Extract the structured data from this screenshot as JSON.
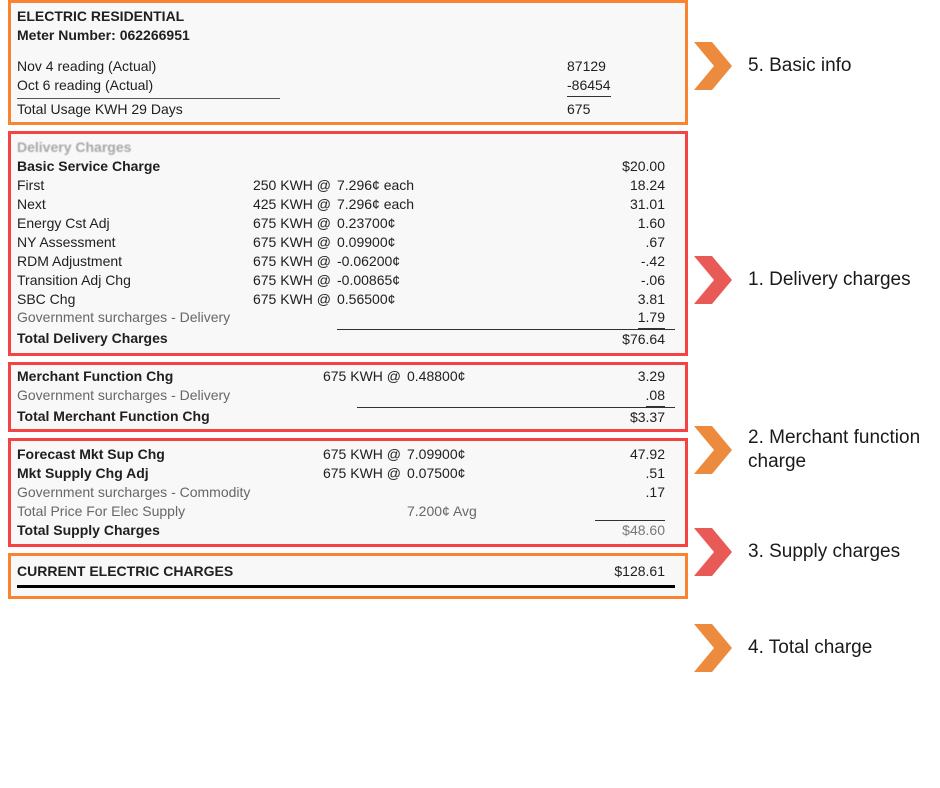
{
  "colors": {
    "box_orange": "#f58233",
    "box_red": "#ee4444",
    "chevron_orange": "#ec8b3e",
    "chevron_red": "#e85a56",
    "bill_bg": "#f3f3f3",
    "text": "#222222"
  },
  "annotations": {
    "basic": "5. Basic info",
    "delivery": "1. Delivery charges",
    "merchant": "2. Merchant function charge",
    "supply": "3. Supply charges",
    "total": "4. Total charge"
  },
  "basic": {
    "title": "ELECTRIC RESIDENTIAL",
    "meter_label": "Meter Number:",
    "meter_number": "062266951",
    "reading1_label": "Nov 4  reading (Actual)",
    "reading1_value": "87129",
    "reading2_label": "Oct 6 reading (Actual)",
    "reading2_value": "-86454",
    "usage_label": "Total Usage KWH 29 Days",
    "usage_value": "675"
  },
  "delivery": {
    "header": "Delivery Charges",
    "basic_service_label": "Basic Service Charge",
    "basic_service_amount": "$20.00",
    "lines": [
      {
        "l": "First",
        "q": "250 KWH @",
        "r": "7.296¢ each",
        "a": "18.24"
      },
      {
        "l": "Next",
        "q": "425 KWH @",
        "r": "7.296¢ each",
        "a": "31.01"
      },
      {
        "l": "Energy Cst Adj",
        "q": "675 KWH @",
        "r": "0.23700¢",
        "a": "1.60"
      },
      {
        "l": "NY Assessment",
        "q": "675 KWH @",
        "r": "0.09900¢",
        "a": ".67"
      },
      {
        "l": "RDM Adjustment",
        "q": "675 KWH @",
        "r": "-0.06200¢",
        "a": "-.42"
      },
      {
        "l": "Transition Adj Chg",
        "q": "675 KWH @",
        "r": "-0.00865¢",
        "a": "-.06"
      },
      {
        "l": "SBC Chg",
        "q": "675 KWH @",
        "r": "0.56500¢",
        "a": "3.81"
      }
    ],
    "surcharge_label": "Government surcharges - Delivery",
    "surcharge_amount": "1.79",
    "total_label": "Total Delivery Charges",
    "total_amount": "$76.64"
  },
  "merchant": {
    "line1_label": "Merchant Function Chg",
    "line1_qty": "675 KWH @",
    "line1_rate": "0.48800¢",
    "line1_amount": "3.29",
    "surcharge_label": "Government surcharges - Delivery",
    "surcharge_amount": ".08",
    "total_label": "Total Merchant Function Chg",
    "total_amount": "$3.37"
  },
  "supply": {
    "line1_label": "Forecast Mkt Sup Chg",
    "line1_qty": "675 KWH @",
    "line1_rate": "7.09900¢",
    "line1_amount": "47.92",
    "line2_label": "Mkt Supply Chg Adj",
    "line2_qty": "675 KWH @",
    "line2_rate": "0.07500¢",
    "line2_amount": ".51",
    "surcharge_label": "Government surcharges - Commodity",
    "surcharge_amount": ".17",
    "price_label": "Total Price For Elec Supply",
    "price_avg": "7.200¢ Avg",
    "total_label": "Total Supply Charges",
    "total_amount": "$48.60"
  },
  "total": {
    "label": "CURRENT ELECTRIC CHARGES",
    "amount": "$128.61"
  }
}
